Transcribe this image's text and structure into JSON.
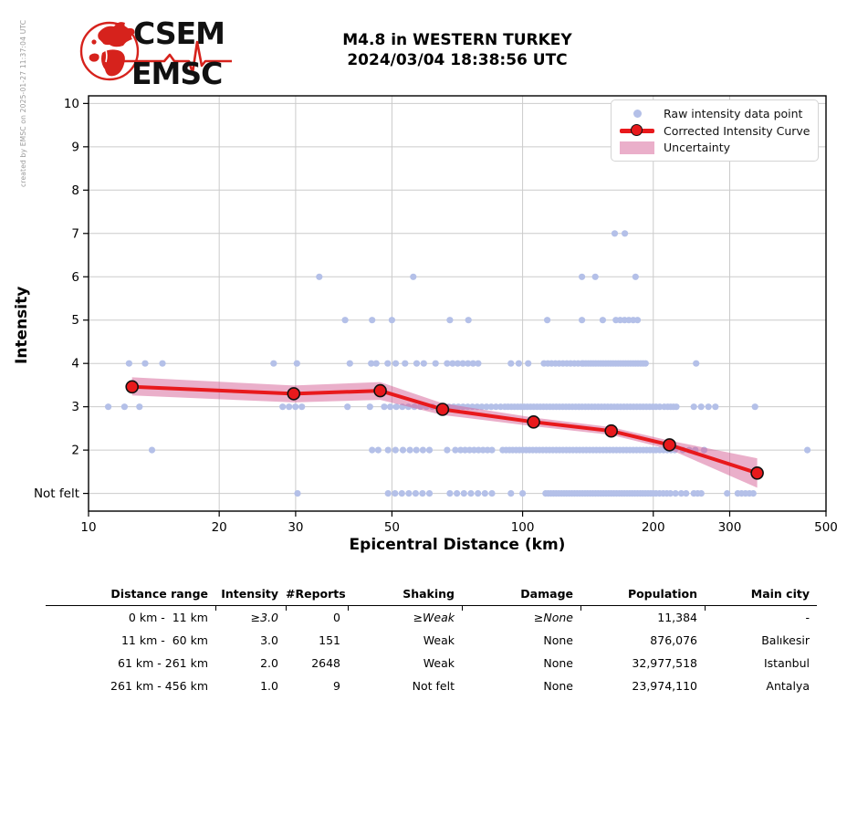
{
  "meta": {
    "created_by": "created by EMSC on 2025-01-27 11:37:04 UTC"
  },
  "logo": {
    "line1": "CSEM",
    "line2": "EMSC"
  },
  "header": {
    "title_line1": "M4.8 in WESTERN TURKEY",
    "title_line2": "2024/03/04 18:38:56 UTC"
  },
  "chart_data": {
    "type": "scatter",
    "title": "",
    "xlabel": "Epicentral Distance (km)",
    "ylabel": "Intensity",
    "x_scale": "log",
    "xlim": [
      10,
      500
    ],
    "ylim": [
      0.6,
      10.2
    ],
    "x_ticks": [
      10,
      20,
      30,
      50,
      100,
      200,
      300,
      500
    ],
    "x_gridlines": [
      20,
      30,
      50,
      100,
      200,
      300
    ],
    "y_ticks": [
      {
        "v": 1,
        "label": "Not felt"
      },
      {
        "v": 2,
        "label": "2"
      },
      {
        "v": 3,
        "label": "3"
      },
      {
        "v": 4,
        "label": "4"
      },
      {
        "v": 5,
        "label": "5"
      },
      {
        "v": 6,
        "label": "6"
      },
      {
        "v": 7,
        "label": "7"
      },
      {
        "v": 8,
        "label": "8"
      },
      {
        "v": 9,
        "label": "9"
      },
      {
        "v": 10,
        "label": "10"
      }
    ],
    "legend": [
      {
        "type": "dot",
        "label": "Raw intensity data point"
      },
      {
        "type": "line",
        "label": "Corrected Intensity Curve"
      },
      {
        "type": "patch",
        "label": "Uncertainty"
      }
    ],
    "colors": {
      "raw": "#b4c0e8",
      "curve": "#e8191c",
      "band": "rgba(214,96,150,0.5)",
      "grid": "#cbcbcb",
      "spine": "#000000"
    },
    "corrected_curve": [
      {
        "d": 12.6,
        "i": 3.46
      },
      {
        "d": 29.7,
        "i": 3.3
      },
      {
        "d": 47,
        "i": 3.37
      },
      {
        "d": 65.4,
        "i": 2.94
      },
      {
        "d": 106,
        "i": 2.65
      },
      {
        "d": 160,
        "i": 2.44
      },
      {
        "d": 218,
        "i": 2.12
      },
      {
        "d": 347,
        "i": 1.47
      }
    ],
    "uncertainty_band": [
      {
        "d": 12.6,
        "lo": 3.26,
        "hi": 3.68
      },
      {
        "d": 29.7,
        "lo": 3.1,
        "hi": 3.49
      },
      {
        "d": 47,
        "lo": 3.16,
        "hi": 3.57
      },
      {
        "d": 65.4,
        "lo": 2.81,
        "hi": 3.08
      },
      {
        "d": 106,
        "lo": 2.55,
        "hi": 2.75
      },
      {
        "d": 160,
        "lo": 2.35,
        "hi": 2.53
      },
      {
        "d": 218,
        "lo": 2.02,
        "hi": 2.22
      },
      {
        "d": 347,
        "lo": 1.13,
        "hi": 1.81
      }
    ],
    "raw_points": [
      {
        "intensity": 7,
        "d": [
          163,
          172
        ]
      },
      {
        "intensity": 6,
        "d": [
          34,
          56,
          137,
          147,
          182
        ]
      },
      {
        "intensity": 5,
        "d": [
          39,
          45,
          50,
          68,
          75,
          114,
          137,
          153,
          {
            "run": [
              164,
              184
            ],
            "n": 6
          }
        ]
      },
      {
        "intensity": 4,
        "d": [
          12.4,
          13.5,
          14.8,
          26.7,
          30.2,
          40,
          44.8,
          46,
          48.9,
          51,
          53.6,
          57,
          59.2,
          63,
          67,
          {
            "run": [
              69,
              79
            ],
            "n": 6
          },
          94,
          98,
          103,
          {
            "run": [
              112,
              137
            ],
            "n": 11
          },
          {
            "run": [
              138,
              192
            ],
            "n": 26
          },
          251
        ]
      },
      {
        "intensity": 3,
        "d": [
          11.1,
          12.1,
          13.1,
          {
            "run": [
              28,
              31
            ],
            "n": 4
          },
          39.5,
          44.5,
          {
            "run": [
              48,
              62
            ],
            "n": 9
          },
          {
            "run": [
              66,
              89
            ],
            "n": 13
          },
          {
            "run": [
              91,
              203
            ],
            "n": 48
          },
          207,
          212,
          {
            "run": [
              216,
              226
            ],
            "n": 4
          },
          {
            "run": [
              248,
              268
            ],
            "n": 3
          },
          278,
          343
        ]
      },
      {
        "intensity": 2,
        "d": [
          14,
          45,
          46.5,
          {
            "run": [
              49,
              53
            ],
            "n": 3
          },
          {
            "run": [
              55,
              61
            ],
            "n": 4
          },
          67,
          70,
          {
            "run": [
              72,
              85
            ],
            "n": 8
          },
          {
            "run": [
              90,
              200
            ],
            "n": 46
          },
          {
            "run": [
              203,
              224
            ],
            "n": 6
          },
          234,
          242,
          250,
          262,
          453
        ]
      },
      {
        "intensity": 1,
        "d": [
          30.3,
          {
            "run": [
              49,
              61
            ],
            "n": 7
          },
          {
            "run": [
              68,
              85
            ],
            "n": 7
          },
          94,
          100,
          {
            "run": [
              113,
              200
            ],
            "n": 42
          },
          {
            "run": [
              203,
              219
            ],
            "n": 5
          },
          225,
          232,
          238,
          {
            "run": [
              248,
              258
            ],
            "n": 3
          },
          296,
          {
            "run": [
              313,
              340
            ],
            "n": 5
          }
        ]
      }
    ]
  },
  "table": {
    "headers": [
      "Distance range",
      "Intensity",
      "#Reports",
      "Shaking",
      "Damage",
      "Population",
      "Main city"
    ],
    "rows": [
      {
        "cells": [
          "0 km -  11 km",
          "≥3.0",
          "0",
          "≥Weak",
          "≥None",
          "11,384",
          "-"
        ],
        "italic_cols": [
          1,
          3,
          4
        ]
      },
      {
        "cells": [
          "11 km -  60 km",
          "3.0",
          "151",
          "Weak",
          "None",
          "876,076",
          "Balıkesir"
        ],
        "italic_cols": []
      },
      {
        "cells": [
          "61 km - 261 km",
          "2.0",
          "2648",
          "Weak",
          "None",
          "32,977,518",
          "Istanbul"
        ],
        "italic_cols": []
      },
      {
        "cells": [
          "261 km - 456 km",
          "1.0",
          "9",
          "Not felt",
          "None",
          "23,974,110",
          "Antalya"
        ],
        "italic_cols": []
      }
    ]
  }
}
